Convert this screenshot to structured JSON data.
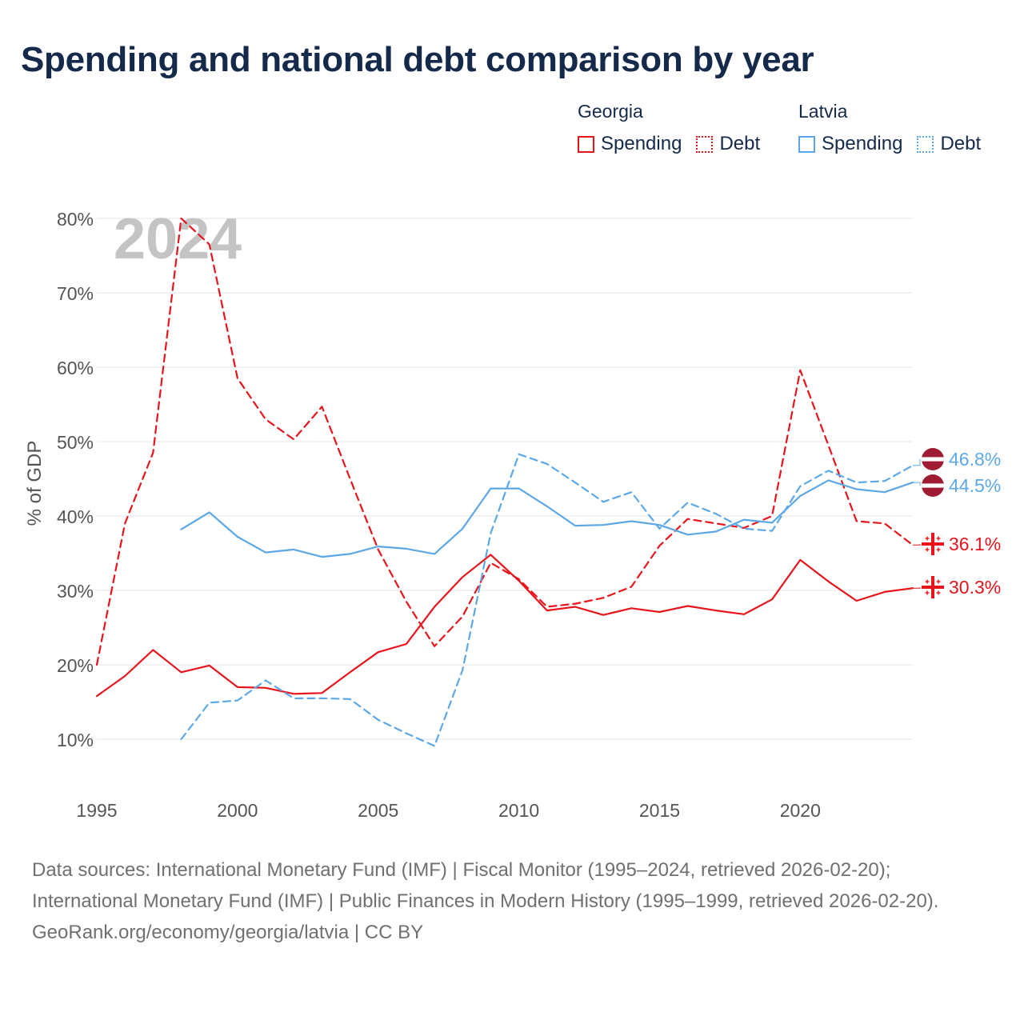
{
  "title": "Spending and national debt comparison by year",
  "legend": {
    "groups": [
      {
        "country": "Georgia",
        "items": [
          {
            "label": "Spending",
            "style": "solid",
            "color": "#e8141c"
          },
          {
            "label": "Debt",
            "style": "dotted",
            "color": "#e8141c"
          }
        ]
      },
      {
        "country": "Latvia",
        "items": [
          {
            "label": "Spending",
            "style": "solid",
            "color": "#5ca8e6"
          },
          {
            "label": "Debt",
            "style": "dotted",
            "color": "#5ca8e6"
          }
        ]
      }
    ]
  },
  "chart_data": {
    "type": "line",
    "year_watermark": "2024",
    "ylabel": "% of GDP",
    "xlim": [
      1995,
      2024
    ],
    "ylim": [
      10,
      80
    ],
    "x_ticks": [
      "1995",
      "2000",
      "2005",
      "2010",
      "2015",
      "2020"
    ],
    "y_ticks": [
      "10%",
      "20%",
      "30%",
      "40%",
      "50%",
      "60%",
      "70%",
      "80%"
    ],
    "grid": true,
    "series": [
      {
        "name": "Georgia Debt",
        "color": "#e8141c",
        "dash": "dashed",
        "x": [
          1995,
          1996,
          1997,
          1998,
          1999,
          2000,
          2001,
          2002,
          2003,
          2004,
          2005,
          2006,
          2007,
          2008,
          2009,
          2010,
          2011,
          2012,
          2013,
          2014,
          2015,
          2016,
          2017,
          2018,
          2019,
          2020,
          2021,
          2022,
          2023,
          2024
        ],
        "values": [
          20,
          39,
          48.5,
          80,
          76.5,
          58.5,
          53,
          50.3,
          54.7,
          45,
          35.5,
          28.5,
          22.5,
          26.5,
          33.7,
          31.5,
          27.8,
          28.2,
          29,
          30.5,
          36,
          39.6,
          39,
          38.4,
          40,
          59.6,
          49.5,
          39.3,
          39,
          36.1
        ],
        "end_label": "36.1%"
      },
      {
        "name": "Georgia Spending",
        "color": "#e8141c",
        "dash": "solid",
        "x": [
          1995,
          1996,
          1997,
          1998,
          1999,
          2000,
          2001,
          2002,
          2003,
          2004,
          2005,
          2006,
          2007,
          2008,
          2009,
          2010,
          2011,
          2012,
          2013,
          2014,
          2015,
          2016,
          2017,
          2018,
          2019,
          2020,
          2021,
          2022,
          2023,
          2024
        ],
        "values": [
          15.8,
          18.5,
          22,
          19,
          19.9,
          17,
          16.9,
          16.1,
          16.2,
          19,
          21.7,
          22.8,
          27.8,
          31.8,
          34.8,
          31.3,
          27.3,
          27.8,
          26.7,
          27.6,
          27.1,
          27.9,
          27.3,
          26.8,
          28.8,
          34.1,
          31.2,
          28.6,
          29.8,
          30.3
        ],
        "end_label": "30.3%"
      },
      {
        "name": "Latvia Spending",
        "color": "#5ca8e6",
        "dash": "solid",
        "x": [
          1998,
          1999,
          2000,
          2001,
          2002,
          2003,
          2004,
          2005,
          2006,
          2007,
          2008,
          2009,
          2010,
          2011,
          2012,
          2013,
          2014,
          2015,
          2016,
          2017,
          2018,
          2019,
          2020,
          2021,
          2022,
          2023,
          2024
        ],
        "values": [
          38.2,
          40.5,
          37.2,
          35.1,
          35.5,
          34.5,
          34.9,
          35.9,
          35.6,
          34.9,
          38.3,
          43.7,
          43.7,
          41.3,
          38.7,
          38.8,
          39.3,
          38.8,
          37.5,
          37.9,
          39.5,
          39.1,
          42.7,
          44.8,
          43.6,
          43.2,
          44.5
        ],
        "end_label": "44.5%"
      },
      {
        "name": "Latvia Debt",
        "color": "#5ca8e6",
        "dash": "dashed",
        "x": [
          1998,
          1999,
          2000,
          2001,
          2002,
          2003,
          2004,
          2005,
          2006,
          2007,
          2008,
          2009,
          2010,
          2011,
          2012,
          2013,
          2014,
          2015,
          2016,
          2017,
          2018,
          2019,
          2020,
          2021,
          2022,
          2023,
          2024
        ],
        "values": [
          10,
          14.9,
          15.2,
          17.9,
          15.5,
          15.5,
          15.4,
          12.6,
          10.8,
          9.1,
          19.3,
          37.7,
          48.3,
          47,
          44.5,
          41.9,
          43.2,
          38.3,
          41.8,
          40.3,
          38.3,
          38,
          44,
          46.1,
          44.5,
          44.7,
          46.8
        ],
        "end_label": "46.8%"
      }
    ]
  },
  "footer": {
    "sources": "Data sources: International Monetary Fund (IMF) | Fiscal Monitor (1995–2024, retrieved 2026-02-20); International Monetary Fund (IMF) | Public Finances in Modern History (1995–1999, retrieved 2026-02-20).",
    "credit": "GeoRank.org/economy/georgia/latvia | CC BY"
  }
}
